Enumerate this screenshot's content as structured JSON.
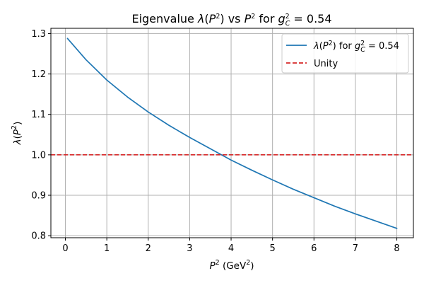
{
  "chart_data": {
    "type": "line",
    "title": {
      "prefix": "Eigenvalue ",
      "lambda": "λ",
      "open": "(",
      "p": "P",
      "two": "2",
      "close": ")",
      "vs": " vs ",
      "for": " for ",
      "g": "g",
      "sub_c": "C",
      "equals_value": " = 0.54"
    },
    "xlabel": {
      "p": "P",
      "sup": "2",
      "unit_open": " (GeV",
      "unit_sup": "2",
      "unit_close": ")"
    },
    "ylabel": {
      "lambda": "λ",
      "open": "(",
      "p": "P",
      "sup": "2",
      "close": ")"
    },
    "xlim": [
      -0.35,
      8.4
    ],
    "ylim": [
      0.795,
      1.313
    ],
    "grid": true,
    "legend_position": "top-right",
    "x_ticks": [
      0,
      1,
      2,
      3,
      4,
      5,
      6,
      7,
      8
    ],
    "y_ticks": [
      0.8,
      0.9,
      1.0,
      1.1,
      1.2,
      1.3
    ],
    "x_tick_labels": [
      "0",
      "1",
      "2",
      "3",
      "4",
      "5",
      "6",
      "7",
      "8"
    ],
    "y_tick_labels": [
      "0.8",
      "0.9",
      "1.0",
      "1.1",
      "1.2",
      "1.3"
    ],
    "series": [
      {
        "name": "λ(P²) for g_C² = 0.54",
        "color": "#1f77b4",
        "style": "solid",
        "x": [
          0.05,
          0.5,
          1.0,
          1.5,
          2.0,
          2.5,
          3.0,
          3.5,
          4.0,
          4.5,
          5.0,
          5.5,
          6.0,
          6.5,
          7.0,
          7.5,
          8.0
        ],
        "y": [
          1.288,
          1.235,
          1.185,
          1.143,
          1.106,
          1.073,
          1.043,
          1.015,
          0.987,
          0.962,
          0.938,
          0.915,
          0.894,
          0.873,
          0.854,
          0.836,
          0.818
        ]
      },
      {
        "name": "Unity",
        "color": "#d62728",
        "style": "dashed",
        "y_constant": 1.0
      }
    ],
    "legend": {
      "series_label": {
        "lambda": "λ",
        "open": "(",
        "p": "P",
        "two": "2",
        "close": ")",
        "for": " for ",
        "g": "g",
        "sub_c": "C",
        "equals_value": " = 0.54"
      },
      "unity_label": "Unity"
    }
  }
}
